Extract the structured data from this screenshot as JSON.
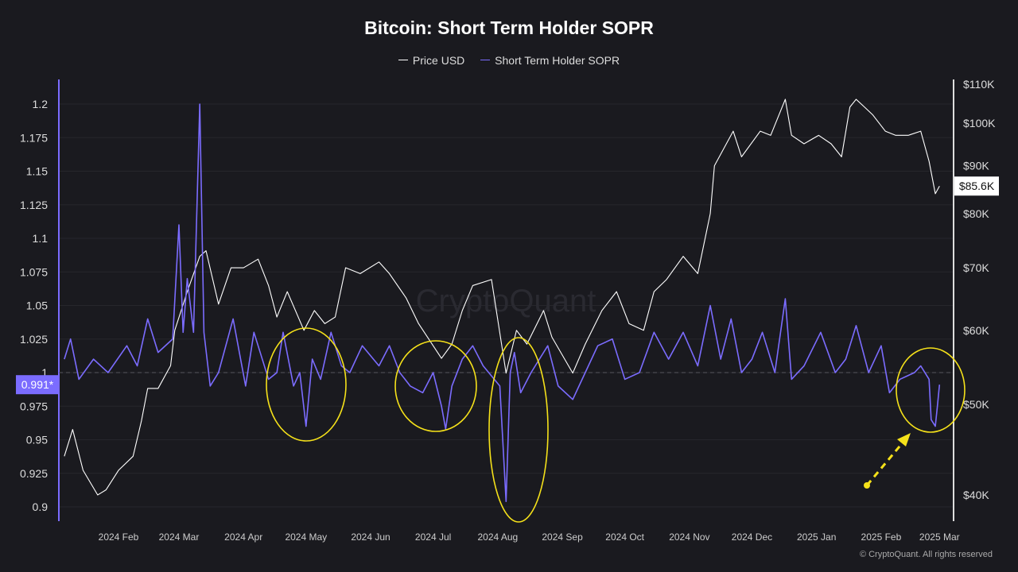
{
  "chart_data": {
    "type": "line",
    "title": "Bitcoin: Short Term Holder SOPR",
    "legend_position": "top",
    "grid": true,
    "x_ticks": [
      "2024 Feb",
      "2024 Mar",
      "2024 Apr",
      "2024 May",
      "2024 Jun",
      "2024 Jul",
      "2024 Aug",
      "2024 Sep",
      "2024 Oct",
      "2024 Nov",
      "2024 Dec",
      "2025 Jan",
      "2025 Feb",
      "2025 Mar"
    ],
    "left_axis": {
      "ticks": [
        "1.2",
        "1.175",
        "1.15",
        "1.125",
        "1.1",
        "1.075",
        "1.05",
        "1.025",
        "1",
        "0.975",
        "0.95",
        "0.925",
        "0.9"
      ],
      "range": [
        0.89,
        1.21
      ]
    },
    "right_axis": {
      "scale": "log",
      "ticks": [
        "$110K",
        "$100K",
        "$90K",
        "$80K",
        "$70K",
        "$60K",
        "$50K",
        "$40K"
      ],
      "range_k": [
        38,
        112
      ]
    },
    "reference_line": 1,
    "current_labels": {
      "sopr": "0.991*",
      "price": "$85.6K"
    },
    "series": [
      {
        "name": "Price USD",
        "color": "#ffffff",
        "axis": "right",
        "unit": "K USD",
        "points": [
          [
            "2024-01-06",
            44
          ],
          [
            "2024-01-10",
            47
          ],
          [
            "2024-01-15",
            42.5
          ],
          [
            "2024-01-22",
            40
          ],
          [
            "2024-01-26",
            40.5
          ],
          [
            "2024-02-01",
            42.5
          ],
          [
            "2024-02-08",
            44
          ],
          [
            "2024-02-12",
            48
          ],
          [
            "2024-02-15",
            52
          ],
          [
            "2024-02-20",
            52
          ],
          [
            "2024-02-26",
            55
          ],
          [
            "2024-02-28",
            60
          ],
          [
            "2024-03-05",
            66
          ],
          [
            "2024-03-11",
            72
          ],
          [
            "2024-03-14",
            73
          ],
          [
            "2024-03-20",
            64
          ],
          [
            "2024-03-26",
            70
          ],
          [
            "2024-04-01",
            70
          ],
          [
            "2024-04-08",
            71.5
          ],
          [
            "2024-04-13",
            67
          ],
          [
            "2024-04-17",
            62
          ],
          [
            "2024-04-22",
            66
          ],
          [
            "2024-04-30",
            60
          ],
          [
            "2024-05-05",
            63
          ],
          [
            "2024-05-10",
            61
          ],
          [
            "2024-05-15",
            62
          ],
          [
            "2024-05-20",
            70
          ],
          [
            "2024-05-27",
            69
          ],
          [
            "2024-06-05",
            71
          ],
          [
            "2024-06-10",
            69
          ],
          [
            "2024-06-18",
            65
          ],
          [
            "2024-06-24",
            61
          ],
          [
            "2024-07-05",
            56
          ],
          [
            "2024-07-10",
            58
          ],
          [
            "2024-07-15",
            63
          ],
          [
            "2024-07-20",
            67
          ],
          [
            "2024-07-29",
            68
          ],
          [
            "2024-08-05",
            54
          ],
          [
            "2024-08-10",
            60
          ],
          [
            "2024-08-15",
            58
          ],
          [
            "2024-08-23",
            63
          ],
          [
            "2024-08-27",
            59
          ],
          [
            "2024-09-06",
            54
          ],
          [
            "2024-09-12",
            58
          ],
          [
            "2024-09-20",
            63
          ],
          [
            "2024-09-27",
            66
          ],
          [
            "2024-10-03",
            61
          ],
          [
            "2024-10-10",
            60
          ],
          [
            "2024-10-15",
            66
          ],
          [
            "2024-10-21",
            68
          ],
          [
            "2024-10-29",
            72
          ],
          [
            "2024-11-05",
            69
          ],
          [
            "2024-11-11",
            80
          ],
          [
            "2024-11-13",
            90
          ],
          [
            "2024-11-22",
            98
          ],
          [
            "2024-11-26",
            92
          ],
          [
            "2024-12-05",
            98
          ],
          [
            "2024-12-10",
            97
          ],
          [
            "2024-12-17",
            106
          ],
          [
            "2024-12-20",
            97
          ],
          [
            "2024-12-26",
            95
          ],
          [
            "2025-01-02",
            97
          ],
          [
            "2025-01-08",
            95
          ],
          [
            "2025-01-13",
            92
          ],
          [
            "2025-01-17",
            104
          ],
          [
            "2025-01-20",
            106
          ],
          [
            "2025-01-24",
            104
          ],
          [
            "2025-01-28",
            102
          ],
          [
            "2025-02-03",
            98
          ],
          [
            "2025-02-08",
            97
          ],
          [
            "2025-02-14",
            97
          ],
          [
            "2025-02-20",
            98
          ],
          [
            "2025-02-24",
            91
          ],
          [
            "2025-02-27",
            84
          ],
          [
            "2025-03-01",
            85.6
          ]
        ]
      },
      {
        "name": "Short Term Holder SOPR",
        "color": "#7b6cff",
        "axis": "left",
        "points": [
          [
            "2024-01-06",
            1.01
          ],
          [
            "2024-01-09",
            1.025
          ],
          [
            "2024-01-13",
            0.995
          ],
          [
            "2024-01-20",
            1.01
          ],
          [
            "2024-01-27",
            1.0
          ],
          [
            "2024-02-05",
            1.02
          ],
          [
            "2024-02-10",
            1.005
          ],
          [
            "2024-02-15",
            1.04
          ],
          [
            "2024-02-20",
            1.015
          ],
          [
            "2024-02-27",
            1.025
          ],
          [
            "2024-03-01",
            1.11
          ],
          [
            "2024-03-03",
            1.03
          ],
          [
            "2024-03-05",
            1.07
          ],
          [
            "2024-03-08",
            1.03
          ],
          [
            "2024-03-11",
            1.2
          ],
          [
            "2024-03-13",
            1.03
          ],
          [
            "2024-03-16",
            0.99
          ],
          [
            "2024-03-20",
            1.0
          ],
          [
            "2024-03-27",
            1.04
          ],
          [
            "2024-04-02",
            0.99
          ],
          [
            "2024-04-06",
            1.03
          ],
          [
            "2024-04-13",
            0.995
          ],
          [
            "2024-04-17",
            1.0
          ],
          [
            "2024-04-20",
            1.03
          ],
          [
            "2024-04-25",
            0.99
          ],
          [
            "2024-04-28",
            1.0
          ],
          [
            "2024-05-01",
            0.96
          ],
          [
            "2024-05-04",
            1.01
          ],
          [
            "2024-05-08",
            0.995
          ],
          [
            "2024-05-13",
            1.03
          ],
          [
            "2024-05-18",
            1.005
          ],
          [
            "2024-05-22",
            1.0
          ],
          [
            "2024-05-28",
            1.02
          ],
          [
            "2024-06-05",
            1.005
          ],
          [
            "2024-06-10",
            1.02
          ],
          [
            "2024-06-15",
            1.0
          ],
          [
            "2024-06-20",
            0.99
          ],
          [
            "2024-06-26",
            0.985
          ],
          [
            "2024-07-01",
            1.0
          ],
          [
            "2024-07-05",
            0.975
          ],
          [
            "2024-07-07",
            0.958
          ],
          [
            "2024-07-10",
            0.99
          ],
          [
            "2024-07-15",
            1.01
          ],
          [
            "2024-07-20",
            1.02
          ],
          [
            "2024-07-25",
            1.005
          ],
          [
            "2024-08-02",
            0.99
          ],
          [
            "2024-08-05",
            0.904
          ],
          [
            "2024-08-07",
            1.0
          ],
          [
            "2024-08-09",
            1.015
          ],
          [
            "2024-08-12",
            0.985
          ],
          [
            "2024-08-17",
            1.0
          ],
          [
            "2024-08-25",
            1.02
          ],
          [
            "2024-08-30",
            0.99
          ],
          [
            "2024-09-06",
            0.98
          ],
          [
            "2024-09-12",
            1.0
          ],
          [
            "2024-09-18",
            1.02
          ],
          [
            "2024-09-25",
            1.025
          ],
          [
            "2024-10-01",
            0.995
          ],
          [
            "2024-10-08",
            1.0
          ],
          [
            "2024-10-15",
            1.03
          ],
          [
            "2024-10-22",
            1.01
          ],
          [
            "2024-10-29",
            1.03
          ],
          [
            "2024-11-05",
            1.005
          ],
          [
            "2024-11-11",
            1.05
          ],
          [
            "2024-11-16",
            1.01
          ],
          [
            "2024-11-21",
            1.04
          ],
          [
            "2024-11-26",
            1.0
          ],
          [
            "2024-12-01",
            1.01
          ],
          [
            "2024-12-06",
            1.03
          ],
          [
            "2024-12-12",
            1.0
          ],
          [
            "2024-12-17",
            1.055
          ],
          [
            "2024-12-20",
            0.995
          ],
          [
            "2024-12-26",
            1.005
          ],
          [
            "2025-01-03",
            1.03
          ],
          [
            "2025-01-10",
            1.0
          ],
          [
            "2025-01-15",
            1.01
          ],
          [
            "2025-01-20",
            1.035
          ],
          [
            "2025-01-26",
            1.0
          ],
          [
            "2025-02-01",
            1.02
          ],
          [
            "2025-02-05",
            0.985
          ],
          [
            "2025-02-10",
            0.995
          ],
          [
            "2025-02-17",
            1.0
          ],
          [
            "2025-02-20",
            1.005
          ],
          [
            "2025-02-24",
            0.995
          ],
          [
            "2025-02-25",
            0.965
          ],
          [
            "2025-02-27",
            0.96
          ],
          [
            "2025-02-28",
            0.975
          ],
          [
            "2025-03-01",
            0.991
          ]
        ]
      }
    ],
    "annotations": {
      "highlight_color": "#f5e11a",
      "circled_dips": [
        "2024-05-01",
        "2024-07-07",
        "2024-08-05",
        "2025-02-27"
      ],
      "arrow_to": "2025-02-27"
    }
  },
  "watermark": "CryptoQuant",
  "credit": "© CryptoQuant. All rights reserved"
}
